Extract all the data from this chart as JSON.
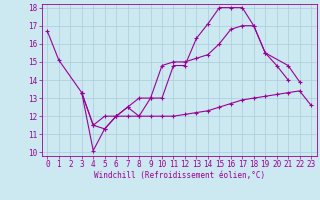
{
  "line1_x": [
    0,
    1,
    3,
    4,
    5,
    6,
    7,
    8,
    9,
    10,
    11,
    12,
    13,
    14,
    15,
    16,
    17,
    18,
    19,
    20,
    21,
    22,
    23
  ],
  "line1_y": [
    16.7,
    15.1,
    13.3,
    11.5,
    11.3,
    12.0,
    12.5,
    13.0,
    13.0,
    13.0,
    14.8,
    14.8,
    16.3,
    17.1,
    18.0,
    18.0,
    18.0,
    17.0,
    15.5,
    14.8,
    14.0,
    null,
    null
  ],
  "line2_x": [
    3,
    4,
    5,
    6,
    7,
    8,
    9,
    10,
    11,
    12,
    13,
    14,
    15,
    16,
    17,
    18,
    19,
    20,
    21,
    22,
    23
  ],
  "line2_y": [
    13.3,
    11.5,
    12.0,
    12.0,
    12.0,
    12.0,
    12.0,
    12.0,
    12.0,
    12.1,
    12.2,
    12.3,
    12.5,
    12.7,
    12.9,
    13.0,
    13.1,
    13.2,
    13.3,
    13.4,
    12.6
  ],
  "line3_x": [
    3,
    4,
    5,
    6,
    7,
    8,
    9,
    10,
    11,
    12,
    13,
    14,
    15,
    16,
    17,
    18,
    19,
    21,
    22
  ],
  "line3_y": [
    13.3,
    10.1,
    11.3,
    12.0,
    12.5,
    12.0,
    13.0,
    14.8,
    15.0,
    15.0,
    15.2,
    15.4,
    16.0,
    16.8,
    17.0,
    17.0,
    15.5,
    14.8,
    13.9
  ],
  "xlim": [
    -0.5,
    23.5
  ],
  "ylim": [
    9.8,
    18.2
  ],
  "xticks": [
    0,
    1,
    2,
    3,
    4,
    5,
    6,
    7,
    8,
    9,
    10,
    11,
    12,
    13,
    14,
    15,
    16,
    17,
    18,
    19,
    20,
    21,
    22,
    23
  ],
  "yticks": [
    10,
    11,
    12,
    13,
    14,
    15,
    16,
    17,
    18
  ],
  "color": "#990099",
  "bg_color": "#cce8f0",
  "grid_color": "#aaccdd",
  "xlabel": "Windchill (Refroidissement éolien,°C)",
  "marker": "+",
  "linewidth": 0.8,
  "markersize": 3,
  "tick_fontsize": 5.5,
  "xlabel_fontsize": 5.5
}
